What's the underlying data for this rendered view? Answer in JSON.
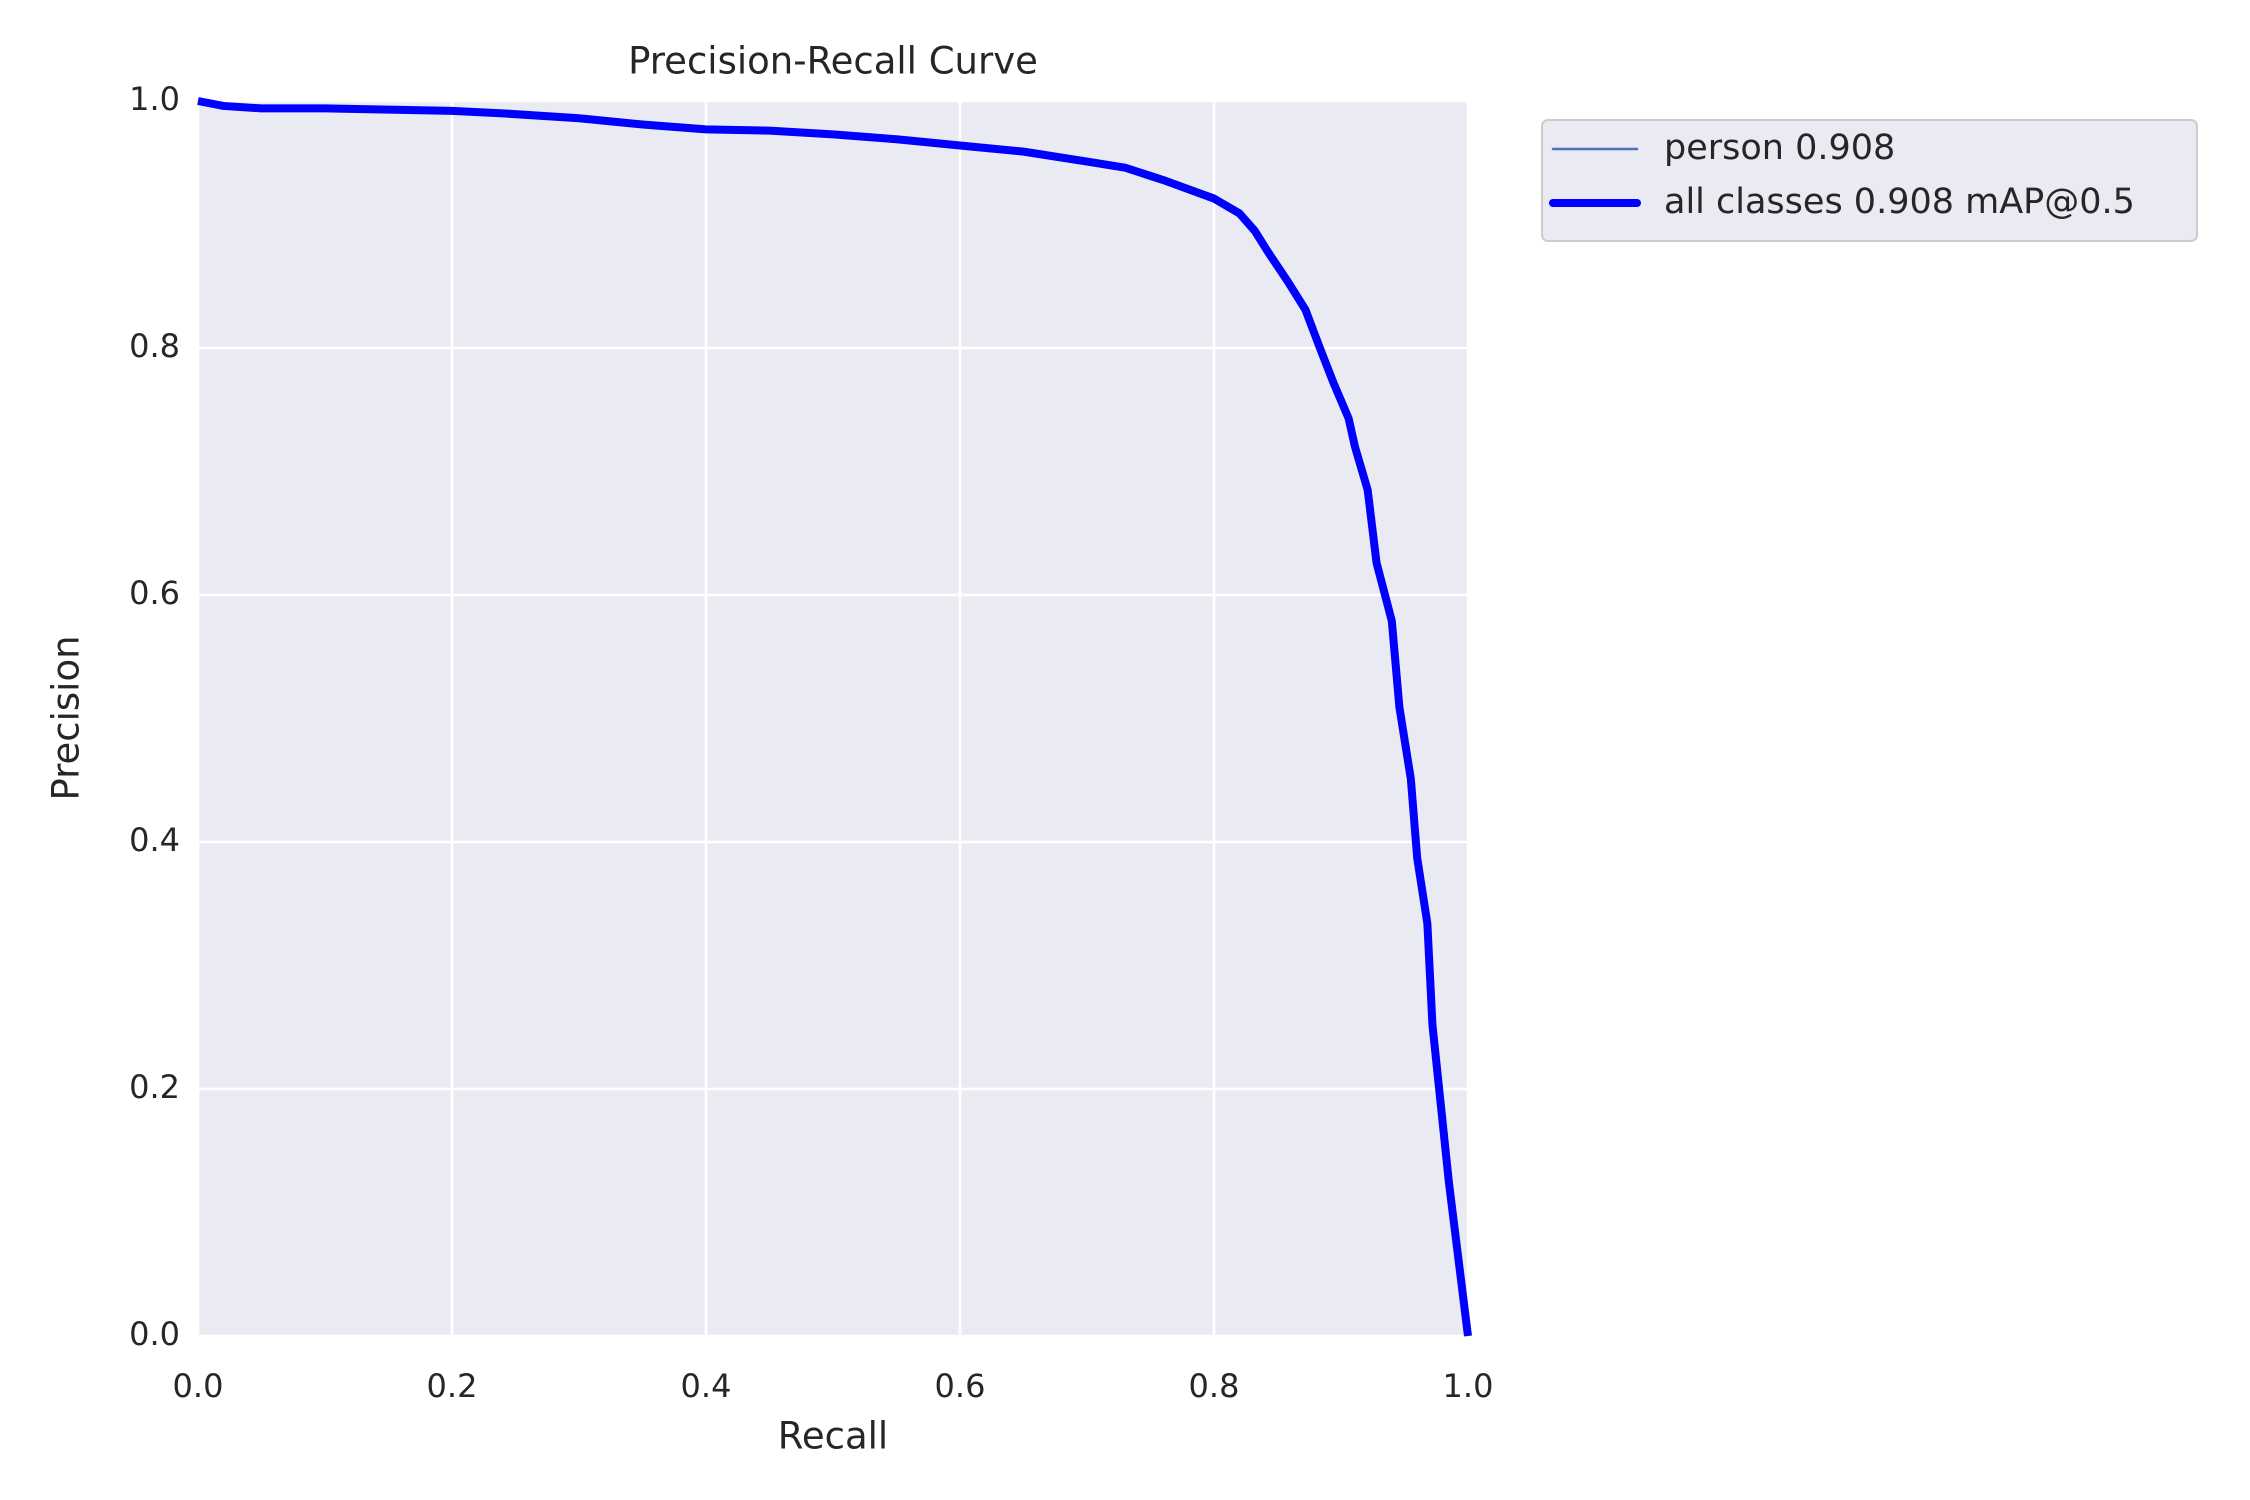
{
  "chart_data": {
    "type": "line",
    "title": "Precision-Recall Curve",
    "x_label": "Recall",
    "y_label": "Precision",
    "xlim": [
      0,
      1
    ],
    "ylim": [
      0,
      1
    ],
    "xticks": [
      {
        "value": 0,
        "label": "0.0"
      },
      0.2,
      0.4,
      0.6,
      0.8,
      {
        "value": 1,
        "label": "1.0"
      }
    ],
    "yticks": [
      {
        "value": 0,
        "label": "0.0"
      },
      0.2,
      0.4,
      0.6,
      0.8,
      {
        "value": 1,
        "label": "1.0"
      }
    ],
    "grid": true,
    "legend": "outside-upper-right",
    "x": [
      0,
      0.02,
      0.05,
      0.1,
      0.15,
      0.2,
      0.24,
      0.3,
      0.35,
      0.4,
      0.45,
      0.5,
      0.55,
      0.6,
      0.65,
      0.7,
      0.73,
      0.76,
      0.8,
      0.82,
      0.832,
      0.843,
      0.858,
      0.872,
      0.883,
      0.894,
      0.906,
      0.911,
      0.921,
      0.928,
      0.94,
      0.946,
      0.955,
      0.96,
      0.968,
      0.972,
      0.985,
      1.0
    ],
    "series": [
      {
        "name": "person 0.908",
        "color": "#4a6fc0",
        "values": [
          1.0,
          0.996,
          0.994,
          0.994,
          0.993,
          0.992,
          0.99,
          0.986,
          0.981,
          0.977,
          0.976,
          0.973,
          0.969,
          0.964,
          0.959,
          0.951,
          0.946,
          0.936,
          0.921,
          0.909,
          0.895,
          0.877,
          0.854,
          0.831,
          0.801,
          0.772,
          0.743,
          0.72,
          0.685,
          0.626,
          0.579,
          0.509,
          0.451,
          0.387,
          0.334,
          0.252,
          0.124,
          0
        ]
      },
      {
        "name": "all classes 0.908 mAP@0.5",
        "color": "#0000ff",
        "values": [
          1.0,
          0.996,
          0.994,
          0.994,
          0.993,
          0.992,
          0.99,
          0.986,
          0.981,
          0.977,
          0.976,
          0.973,
          0.969,
          0.964,
          0.959,
          0.951,
          0.946,
          0.936,
          0.921,
          0.909,
          0.895,
          0.877,
          0.854,
          0.831,
          0.801,
          0.772,
          0.743,
          0.72,
          0.685,
          0.626,
          0.579,
          0.509,
          0.451,
          0.387,
          0.334,
          0.252,
          0.124,
          0
        ]
      }
    ]
  }
}
